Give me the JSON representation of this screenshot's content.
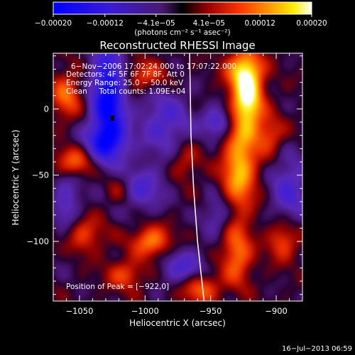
{
  "chart_data": {
    "type": "heatmap",
    "title": "Reconstructed RHESSI Image",
    "xlabel": "Heliocentric X (arcsec)",
    "ylabel": "Heliocentric Y (arcsec)",
    "xlim": [
      -1070,
      -880
    ],
    "ylim": [
      -145,
      42
    ],
    "x_ticks": [
      -1050,
      -1000,
      -950,
      -900
    ],
    "x_tick_labels": [
      "−1050",
      "−1000",
      "−950",
      "−900"
    ],
    "y_ticks": [
      0,
      -50,
      -100
    ],
    "y_tick_labels": [
      "0",
      "−50",
      "−100"
    ],
    "colorbar": {
      "min": -0.0002,
      "max": 0.0002,
      "ticks": [
        -0.0002,
        -0.00012,
        -4.1e-05,
        4.1e-05,
        0.00012,
        0.0002
      ],
      "tick_labels": [
        "−0.00020",
        "−0.00012",
        "−4.1e−05",
        "4.1e−05",
        "0.00012",
        "0.00020"
      ],
      "unit_label": "(photons cm⁻² s⁻¹ asec⁻²)",
      "colors": [
        "#0000ff",
        "#6a00c8",
        "#000000",
        "#c00000",
        "#ff6600",
        "#ffff00",
        "#ffffff"
      ]
    },
    "annotations": [
      "6−Nov−2006 17:02:24.000 to 17:07:22.000",
      "Detectors: 4F 5F 6F 7F 8F, Att 0",
      "Energy Range: 25.0 − 50.0 keV",
      "Clean     Total counts: 1.09E+04"
    ],
    "peak_label": "Position of Peak = [−922,0]",
    "peak_position": [
      -922,
      0
    ],
    "limb_curve": [
      [
        -966,
        42
      ],
      [
        -965,
        -20
      ],
      [
        -963,
        -60
      ],
      [
        -960,
        -100
      ],
      [
        -955,
        -145
      ]
    ],
    "blobs": [
      {
        "x": -922,
        "y": 8,
        "sx": 8,
        "sy": 18,
        "v": 1.0
      },
      {
        "x": -925,
        "y": 30,
        "sx": 10,
        "sy": 10,
        "v": 0.55
      },
      {
        "x": -928,
        "y": -45,
        "sx": 9,
        "sy": 22,
        "v": 0.75
      },
      {
        "x": -930,
        "y": -110,
        "sx": 8,
        "sy": 16,
        "v": 0.55
      },
      {
        "x": -1028,
        "y": 8,
        "sx": 9,
        "sy": 28,
        "v": -1.0
      },
      {
        "x": -1030,
        "y": -25,
        "sx": 12,
        "sy": 10,
        "v": -0.55
      },
      {
        "x": -985,
        "y": -10,
        "sx": 14,
        "sy": 18,
        "v": -0.45
      },
      {
        "x": -945,
        "y": -10,
        "sx": 8,
        "sy": 8,
        "v": -0.5
      },
      {
        "x": -1005,
        "y": -60,
        "sx": 14,
        "sy": 12,
        "v": -0.45
      },
      {
        "x": -890,
        "y": -60,
        "sx": 10,
        "sy": 18,
        "v": -0.45
      },
      {
        "x": -970,
        "y": -120,
        "sx": 12,
        "sy": 10,
        "v": -0.45
      },
      {
        "x": -1060,
        "y": -75,
        "sx": 8,
        "sy": 22,
        "v": -0.4
      },
      {
        "x": -995,
        "y": -100,
        "sx": 10,
        "sy": 8,
        "v": 0.6
      },
      {
        "x": -1050,
        "y": -95,
        "sx": 12,
        "sy": 10,
        "v": 0.45
      },
      {
        "x": -1015,
        "y": -125,
        "sx": 10,
        "sy": 8,
        "v": 0.4
      },
      {
        "x": -958,
        "y": -135,
        "sx": 10,
        "sy": 8,
        "v": 0.55
      },
      {
        "x": -1055,
        "y": -40,
        "sx": 10,
        "sy": 8,
        "v": 0.55
      },
      {
        "x": -1060,
        "y": 10,
        "sx": 8,
        "sy": 12,
        "v": 0.5
      },
      {
        "x": -1000,
        "y": 25,
        "sx": 12,
        "sy": 8,
        "v": 0.4
      },
      {
        "x": -905,
        "y": -20,
        "sx": 8,
        "sy": 10,
        "v": 0.4
      },
      {
        "x": -895,
        "y": -100,
        "sx": 8,
        "sy": 10,
        "v": 0.45
      },
      {
        "x": -970,
        "y": -40,
        "sx": 8,
        "sy": 10,
        "v": 0.3
      },
      {
        "x": -1020,
        "y": -60,
        "sx": 8,
        "sy": 10,
        "v": 0.35
      },
      {
        "x": -945,
        "y": -80,
        "sx": 8,
        "sy": 10,
        "v": -0.35
      }
    ]
  },
  "footer_timestamp": "16−Jul−2013 06:59"
}
